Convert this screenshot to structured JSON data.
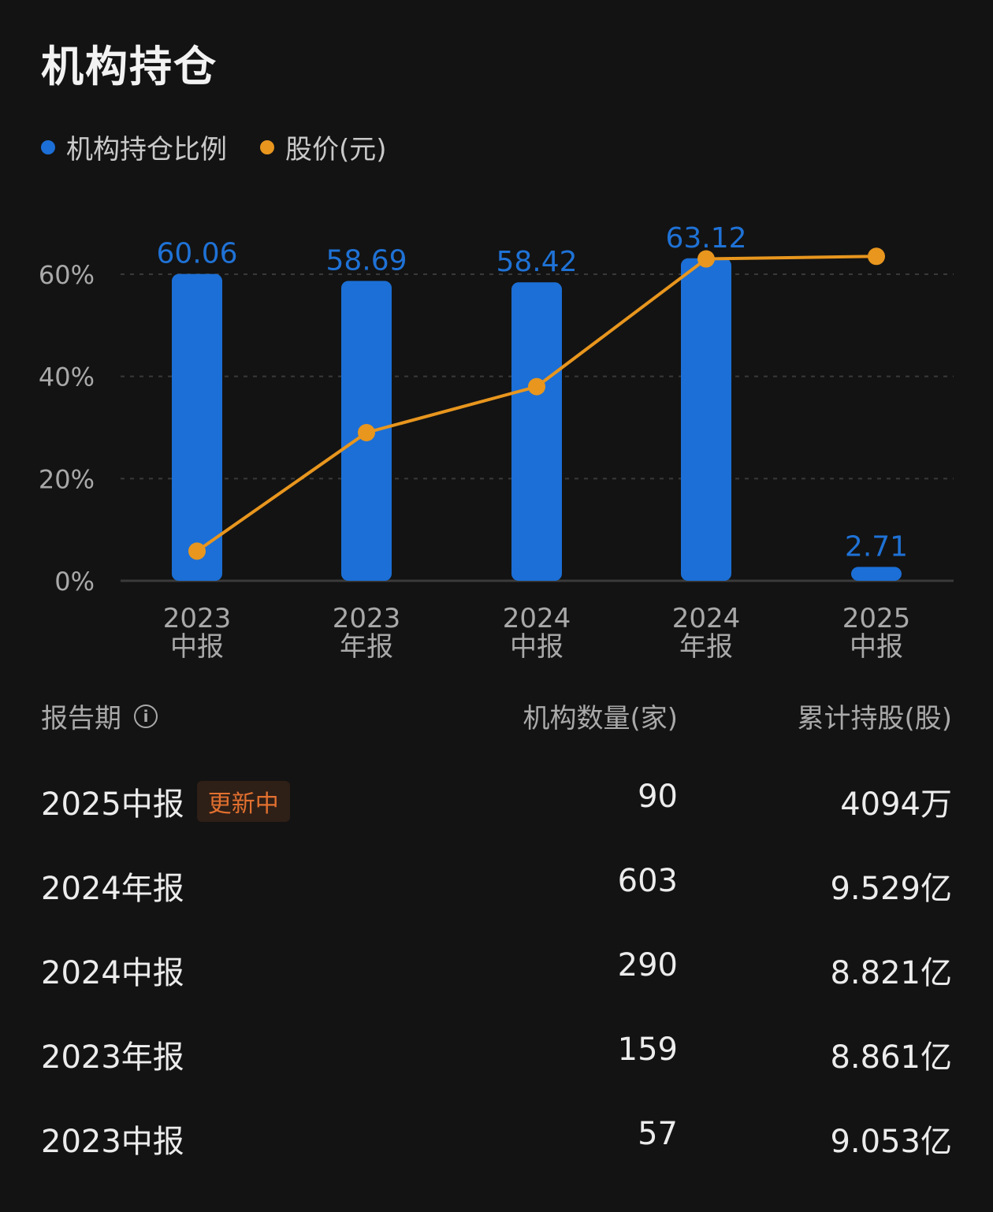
{
  "title": "机构持仓",
  "legend": [
    {
      "label": "机构持仓比例",
      "color": "#1c6fd6"
    },
    {
      "label": "股价(元)",
      "color": "#e8961e"
    }
  ],
  "chart_data": {
    "type": "bar",
    "categories": [
      [
        "2023",
        "中报"
      ],
      [
        "2023",
        "年报"
      ],
      [
        "2024",
        "中报"
      ],
      [
        "2024",
        "年报"
      ],
      [
        "2025",
        "中报"
      ]
    ],
    "series": [
      {
        "name": "机构持仓比例",
        "type": "bar",
        "values": [
          60.06,
          58.69,
          58.42,
          63.12,
          2.71
        ],
        "labels": [
          "60.06",
          "58.69",
          "58.42",
          "63.12",
          "2.71"
        ],
        "color": "#1c6fd6"
      },
      {
        "name": "股价(元)",
        "type": "line",
        "values_relative_pct": [
          5.8,
          29.0,
          38.0,
          63.0,
          63.5
        ],
        "color": "#e8961e"
      }
    ],
    "y_ticks": [
      "0%",
      "20%",
      "40%",
      "60%"
    ],
    "ylim": [
      0,
      60
    ],
    "grid": true
  },
  "table": {
    "headers": {
      "period": "报告期",
      "count": "机构数量(家)",
      "shares": "累计持股(股)"
    },
    "info_icon": "i",
    "rows": [
      {
        "period": "2025中报",
        "badge": "更新中",
        "count": "90",
        "shares": "4094万"
      },
      {
        "period": "2024年报",
        "badge": "",
        "count": "603",
        "shares": "9.529亿"
      },
      {
        "period": "2024中报",
        "badge": "",
        "count": "290",
        "shares": "8.821亿"
      },
      {
        "period": "2023年报",
        "badge": "",
        "count": "159",
        "shares": "8.861亿"
      },
      {
        "period": "2023中报",
        "badge": "",
        "count": "57",
        "shares": "9.053亿"
      }
    ]
  }
}
